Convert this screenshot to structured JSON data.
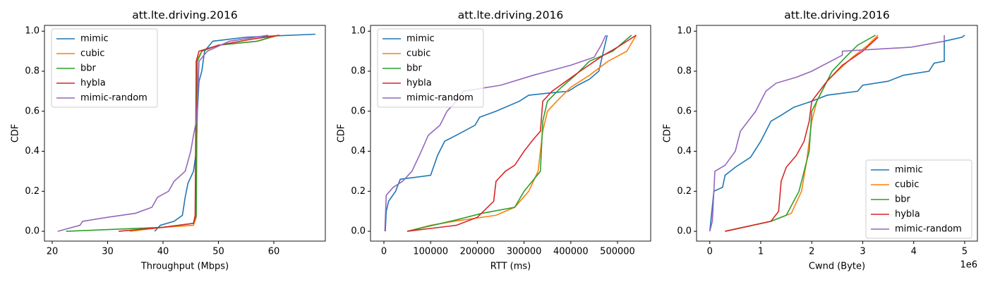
{
  "chart_data": [
    {
      "type": "line",
      "title": "att.lte.driving.2016",
      "xlabel": "Throughput (Mbps)",
      "ylabel": "CDF",
      "legend": "upper left",
      "xlim": [
        18.6,
        69.3
      ],
      "ylim": [
        -0.049,
        1.029
      ],
      "xticks": [
        20,
        30,
        40,
        50,
        60
      ],
      "yticks": [
        {
          "value": 0,
          "label": "0.0"
        },
        {
          "value": 0.2,
          "label": "0.2"
        },
        {
          "value": 0.4,
          "label": "0.4"
        },
        {
          "value": 0.6,
          "label": "0.6"
        },
        {
          "value": 0.8,
          "label": "0.8"
        },
        {
          "value": 1,
          "label": "1.0"
        }
      ],
      "series": [
        {
          "name": "mimic",
          "color": "#1f77b4",
          "x": [
            38.5,
            39.5,
            42,
            43.5,
            44,
            44.5,
            45.5,
            46,
            46.2,
            46.5,
            47,
            47.5,
            49,
            55,
            67.5
          ],
          "values": [
            0,
            0.03,
            0.05,
            0.08,
            0.17,
            0.24,
            0.3,
            0.4,
            0.6,
            0.75,
            0.8,
            0.9,
            0.95,
            0.97,
            0.985
          ]
        },
        {
          "name": "cubic",
          "color": "#ff7f0e",
          "x": [
            34,
            40,
            45.5,
            46,
            46,
            47,
            50,
            57,
            61
          ],
          "values": [
            0,
            0.02,
            0.03,
            0.07,
            0.85,
            0.9,
            0.93,
            0.95,
            0.98
          ]
        },
        {
          "name": "bbr",
          "color": "#2ca02c",
          "x": [
            22.5,
            40,
            45.5,
            46,
            46.2,
            47,
            50,
            57,
            60
          ],
          "values": [
            0,
            0.02,
            0.04,
            0.08,
            0.85,
            0.9,
            0.93,
            0.95,
            0.975
          ]
        },
        {
          "name": "hybla",
          "color": "#d62728",
          "x": [
            32,
            40,
            45.5,
            45.8,
            46,
            46.5,
            50,
            56,
            61
          ],
          "values": [
            0,
            0.02,
            0.04,
            0.08,
            0.85,
            0.9,
            0.93,
            0.96,
            0.98
          ]
        },
        {
          "name": "mimic-random",
          "color": "#9467bd",
          "x": [
            21,
            25,
            25.5,
            30,
            35,
            38,
            39,
            41,
            42,
            44,
            45,
            45.5,
            46,
            46.3,
            46.5,
            48,
            52,
            59
          ],
          "values": [
            0,
            0.03,
            0.05,
            0.07,
            0.09,
            0.12,
            0.17,
            0.2,
            0.25,
            0.3,
            0.4,
            0.48,
            0.55,
            0.7,
            0.85,
            0.9,
            0.95,
            0.98
          ]
        }
      ]
    },
    {
      "type": "line",
      "title": "att.lte.driving.2016",
      "xlabel": "RTT (ms)",
      "ylabel": "CDF",
      "legend": "upper left",
      "xlim": [
        -28700,
        571000
      ],
      "ylim": [
        -0.049,
        1.029
      ],
      "xticks": [
        0,
        100000,
        200000,
        300000,
        400000,
        500000
      ],
      "yticks": [
        {
          "value": 0,
          "label": "0.0"
        },
        {
          "value": 0.2,
          "label": "0.2"
        },
        {
          "value": 0.4,
          "label": "0.4"
        },
        {
          "value": 0.6,
          "label": "0.6"
        },
        {
          "value": 0.8,
          "label": "0.8"
        },
        {
          "value": 1,
          "label": "1.0"
        }
      ],
      "series": [
        {
          "name": "mimic",
          "color": "#1f77b4",
          "x": [
            3000,
            5000,
            10000,
            25000,
            35000,
            100000,
            115000,
            130000,
            155000,
            195000,
            205000,
            240000,
            290000,
            310000,
            350000,
            395000,
            415000,
            440000,
            460000,
            470000,
            478000
          ],
          "values": [
            0,
            0.1,
            0.15,
            0.2,
            0.26,
            0.28,
            0.38,
            0.45,
            0.48,
            0.53,
            0.57,
            0.6,
            0.65,
            0.68,
            0.69,
            0.7,
            0.73,
            0.76,
            0.8,
            0.9,
            0.98
          ]
        },
        {
          "name": "cubic",
          "color": "#ff7f0e",
          "x": [
            50000,
            100000,
            150000,
            240000,
            280000,
            310000,
            330000,
            340000,
            350000,
            370000,
            400000,
            440000,
            480000,
            520000,
            540000
          ],
          "values": [
            0,
            0.03,
            0.05,
            0.08,
            0.12,
            0.2,
            0.3,
            0.5,
            0.6,
            0.65,
            0.72,
            0.78,
            0.85,
            0.9,
            0.98
          ]
        },
        {
          "name": "bbr",
          "color": "#2ca02c",
          "x": [
            50000,
            160000,
            210000,
            280000,
            300000,
            335000,
            340000,
            350000,
            380000,
            410000,
            440000,
            490000,
            530000
          ],
          "values": [
            0,
            0.06,
            0.09,
            0.12,
            0.2,
            0.3,
            0.55,
            0.65,
            0.72,
            0.78,
            0.85,
            0.9,
            0.98
          ]
        },
        {
          "name": "hybla",
          "color": "#d62728",
          "x": [
            50000,
            155000,
            200000,
            235000,
            240000,
            260000,
            280000,
            300000,
            320000,
            335000,
            340000,
            360000,
            390000,
            420000,
            470000,
            500000,
            540000
          ],
          "values": [
            0,
            0.03,
            0.07,
            0.15,
            0.25,
            0.3,
            0.33,
            0.4,
            0.46,
            0.5,
            0.65,
            0.7,
            0.75,
            0.8,
            0.88,
            0.92,
            0.98
          ]
        },
        {
          "name": "mimic-random",
          "color": "#9467bd",
          "x": [
            2000,
            5000,
            20000,
            40000,
            60000,
            80000,
            95000,
            120000,
            135000,
            155000,
            170000,
            250000,
            320000,
            400000,
            450000,
            465000,
            475000
          ],
          "values": [
            0,
            0.18,
            0.22,
            0.25,
            0.3,
            0.4,
            0.48,
            0.53,
            0.6,
            0.65,
            0.7,
            0.73,
            0.78,
            0.83,
            0.87,
            0.93,
            0.98
          ]
        }
      ]
    },
    {
      "type": "line",
      "title": "att.lte.driving.2016",
      "xlabel": "Cwnd (Byte)",
      "ylabel": "CDF",
      "legend": "lower right",
      "x_offset_label": "1e6",
      "xlim": [
        -260000,
        5250000
      ],
      "ylim": [
        -0.049,
        1.029
      ],
      "xticks": [
        {
          "value": 0,
          "label": "0"
        },
        {
          "value": 1000000,
          "label": "1"
        },
        {
          "value": 2000000,
          "label": "2"
        },
        {
          "value": 3000000,
          "label": "3"
        },
        {
          "value": 4000000,
          "label": "4"
        },
        {
          "value": 5000000,
          "label": "5"
        }
      ],
      "yticks": [
        {
          "value": 0,
          "label": "0.0"
        },
        {
          "value": 0.2,
          "label": "0.2"
        },
        {
          "value": 0.4,
          "label": "0.4"
        },
        {
          "value": 0.6,
          "label": "0.6"
        },
        {
          "value": 0.8,
          "label": "0.8"
        },
        {
          "value": 1,
          "label": "1.0"
        }
      ],
      "series": [
        {
          "name": "mimic",
          "color": "#1f77b4",
          "x": [
            0,
            80000,
            250000,
            300000,
            500000,
            800000,
            1000000,
            1200000,
            1400000,
            1650000,
            2000000,
            2300000,
            2900000,
            3000000,
            3500000,
            3800000,
            4300000,
            4400000,
            4600000,
            4600000,
            4950000,
            5000000
          ],
          "values": [
            0,
            0.2,
            0.22,
            0.28,
            0.32,
            0.37,
            0.45,
            0.55,
            0.58,
            0.62,
            0.65,
            0.68,
            0.7,
            0.73,
            0.75,
            0.78,
            0.8,
            0.84,
            0.85,
            0.95,
            0.97,
            0.98
          ]
        },
        {
          "name": "cubic",
          "color": "#ff7f0e",
          "x": [
            300000,
            1200000,
            1600000,
            1800000,
            1900000,
            2000000,
            2100000,
            2300000,
            2500000,
            2800000,
            3100000,
            3300000
          ],
          "values": [
            0,
            0.05,
            0.09,
            0.2,
            0.35,
            0.55,
            0.65,
            0.75,
            0.8,
            0.87,
            0.93,
            0.98
          ]
        },
        {
          "name": "bbr",
          "color": "#2ca02c",
          "x": [
            300000,
            1200000,
            1500000,
            1750000,
            1950000,
            2000000,
            2200000,
            2400000,
            2700000,
            2900000,
            3250000
          ],
          "values": [
            0,
            0.05,
            0.08,
            0.2,
            0.4,
            0.6,
            0.7,
            0.8,
            0.88,
            0.93,
            0.98
          ]
        },
        {
          "name": "hybla",
          "color": "#d62728",
          "x": [
            300000,
            1200000,
            1350000,
            1400000,
            1500000,
            1700000,
            1850000,
            1950000,
            2000000,
            2300000,
            2600000,
            3000000,
            3300000
          ],
          "values": [
            0,
            0.05,
            0.1,
            0.25,
            0.32,
            0.38,
            0.45,
            0.55,
            0.65,
            0.75,
            0.83,
            0.9,
            0.97
          ]
        },
        {
          "name": "mimic-random",
          "color": "#9467bd",
          "x": [
            0,
            50000,
            100000,
            300000,
            500000,
            600000,
            750000,
            900000,
            1100000,
            1300000,
            1700000,
            2000000,
            2600000,
            2600000,
            3950000,
            4600000,
            4600000
          ],
          "values": [
            0,
            0.05,
            0.3,
            0.33,
            0.4,
            0.5,
            0.55,
            0.6,
            0.7,
            0.74,
            0.77,
            0.8,
            0.88,
            0.9,
            0.92,
            0.95,
            0.98
          ]
        }
      ]
    }
  ]
}
